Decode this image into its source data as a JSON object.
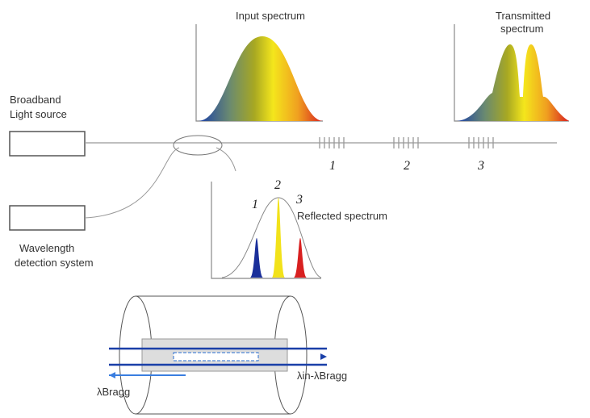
{
  "input_spectrum": {
    "title": "Input spectrum"
  },
  "transmitted_spectrum": {
    "title": [
      "Transmitted",
      "spectrum"
    ]
  },
  "light_source": {
    "label": [
      "Broadband",
      "Light source"
    ]
  },
  "detector": {
    "label": [
      "Wavelength",
      "detection system"
    ]
  },
  "gratings": [
    "1",
    "2",
    "3"
  ],
  "reflected_spectrum": {
    "title": "Reflected spectrum",
    "peaks": [
      "1",
      "2",
      "3"
    ]
  },
  "fiber_detail": {
    "reflected_label": "λBragg",
    "transmitted_label": "λin-λBragg"
  }
}
